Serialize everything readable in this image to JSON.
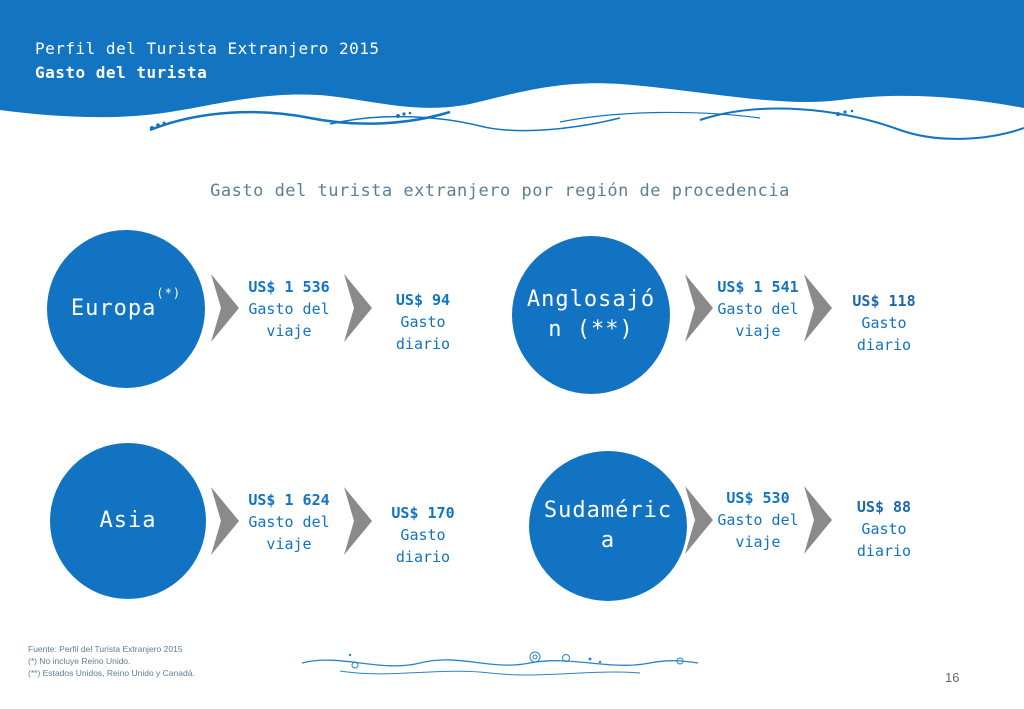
{
  "header": {
    "title": "Perfil del Turista Extranjero 2015",
    "subtitle": "Gasto del turista"
  },
  "section_title": "Gasto del turista extranjero por región de procedencia",
  "colors": {
    "primary": "#1273c2",
    "chevron": "#8a8a8a",
    "header_bg": "#1374c1"
  },
  "regions": [
    {
      "name": "Europa",
      "sup": "(*)",
      "trip_amount": "US$ 1 536",
      "trip_label": "Gasto del viaje",
      "daily_amount": "US$ 94",
      "daily_label": "Gasto diario"
    },
    {
      "name": "Anglosajón (**)",
      "sup": "",
      "trip_amount": "US$ 1 541",
      "trip_label": "Gasto del viaje",
      "daily_amount": "US$ 118",
      "daily_label": "Gasto diario"
    },
    {
      "name": "Asia",
      "sup": "",
      "trip_amount": "US$ 1 624",
      "trip_label": "Gasto del viaje",
      "daily_amount": "US$ 170",
      "daily_label": "Gasto diario"
    },
    {
      "name": "Sudamérica",
      "sup": "",
      "trip_amount": "US$ 530",
      "trip_label": "Gasto del viaje",
      "daily_amount": "US$ 88",
      "daily_label": "Gasto diario"
    }
  ],
  "footnotes": {
    "source": "Fuente: Perfil del Turista Extranjero 2015",
    "note1": "(*)    No incluye Reino Unido.",
    "note2": "(**)  Estados Unidos, Reino Unido y Canadá."
  },
  "page_number": "16"
}
